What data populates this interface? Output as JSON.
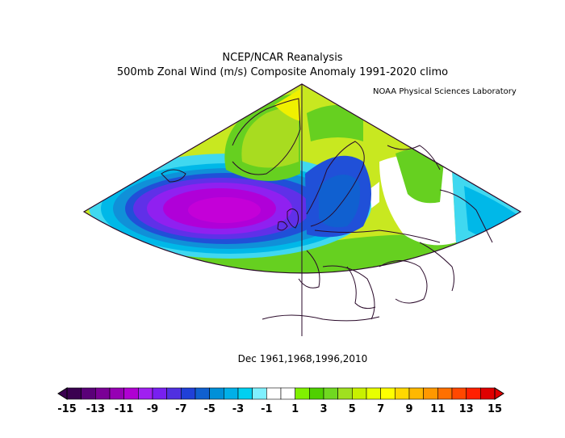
{
  "header": {
    "title_line1": "NCEP/NCAR Reanalysis",
    "title_line2": "500mb Zonal Wind (m/s) Composite Anomaly 1991-2020 climo",
    "credit": "NOAA Physical Sciences Laboratory"
  },
  "footer": {
    "dates": "Dec 1961,1968,1996,2010"
  },
  "colorbar": {
    "min": -15,
    "max": 15,
    "tick_labels": [
      "-15",
      "-13",
      "-11",
      "-9",
      "-7",
      "-5",
      "-3",
      "-1",
      "1",
      "3",
      "5",
      "7",
      "9",
      "11",
      "13",
      "15"
    ],
    "colors": [
      "#3a0050",
      "#5a0078",
      "#7a0096",
      "#9600b4",
      "#b000d2",
      "#a020f0",
      "#7820f0",
      "#5030e0",
      "#2040d8",
      "#1060d0",
      "#0090d8",
      "#00b0e8",
      "#00d0f0",
      "#80f0ff",
      "#ffffff",
      "#ffffff",
      "#80f000",
      "#50d000",
      "#70d820",
      "#a0e020",
      "#c8f000",
      "#e8ff00",
      "#ffff00",
      "#ffd800",
      "#ffb800",
      "#ff9800",
      "#ff7000",
      "#ff4800",
      "#ff2000",
      "#e00000"
    ]
  }
}
